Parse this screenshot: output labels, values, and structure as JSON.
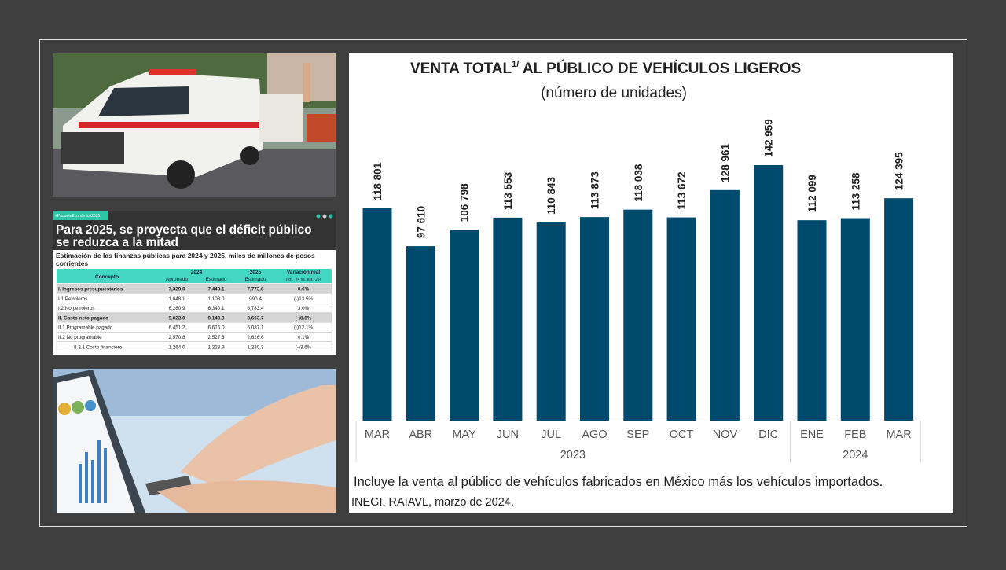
{
  "chart_data": {
    "type": "bar",
    "title": "VENTA TOTAL",
    "title_superscript": "1/",
    "title_rest": " AL PÚBLICO DE VEHÍCULOS LIGEROS",
    "subtitle": "(número de unidades)",
    "color": "#004a6e",
    "groups": [
      {
        "label": "2023",
        "categories": [
          "MAR",
          "ABR",
          "MAY",
          "JUN",
          "JUL",
          "AGO",
          "SEP",
          "OCT",
          "NOV",
          "DIC"
        ],
        "values": [
          118801,
          97610,
          106798,
          113553,
          110843,
          113873,
          118038,
          113672,
          128961,
          142959
        ],
        "value_labels": [
          "118 801",
          "97 610",
          "106 798",
          "113 553",
          "110 843",
          "113 873",
          "118 038",
          "113 672",
          "128 961",
          "142 959"
        ]
      },
      {
        "label": "2024",
        "categories": [
          "ENE",
          "FEB",
          "MAR"
        ],
        "values": [
          112099,
          113258,
          124395
        ],
        "value_labels": [
          "112 099",
          "113 258",
          "124 395"
        ]
      }
    ],
    "note": "Incluye la venta al público de vehículos fabricados en México más los vehículos importados.",
    "source": "INEGI. RAIAVL, marzo de 2024."
  },
  "infographic": {
    "tag": "#PaqueteEconómico2025",
    "title_lines": [
      "Para 2025, se proyecta que el déficit público",
      "se reduzca a la mitad"
    ],
    "subtitle": "Estimación de las finanzas públicas para 2024 y 2025, miles de millones de pesos corrientes",
    "table": {
      "header": {
        "concept": "Concepto",
        "year1": "2024",
        "year2": "2025",
        "variation": "Variación real",
        "sub": [
          "Aprobado",
          "Estimado",
          "Estimado",
          "(est. '24 vs. est. '25)"
        ]
      },
      "rows": [
        [
          "I. Ingresos presupuestarios",
          "7,329.0",
          "7,443.1",
          "7,773.8",
          "0.6%"
        ],
        [
          "I.1 Petroleros",
          "1,048.1",
          "1,103.0",
          "990.4",
          "(-)13.5%"
        ],
        [
          "I.2 No petroleros",
          "6,280.9",
          "6,340.1",
          "6,783.4",
          "3.0%"
        ],
        [
          "II. Gasto neto pagado",
          "9,022.0",
          "9,143.3",
          "8,663.7",
          "(-)8.8%"
        ],
        [
          "II.1 Programable pagado",
          "6,451.2",
          "6,616.0",
          "6,037.1",
          "(-)12.1%"
        ],
        [
          "II.2 No programable",
          "2,570.8",
          "2,527.3",
          "2,626.6",
          "0.1%"
        ],
        [
          "II.2.1 Costo financiero",
          "1,264.0",
          "1,228.9",
          "1,230.3",
          "(-)3.6%"
        ]
      ]
    }
  }
}
